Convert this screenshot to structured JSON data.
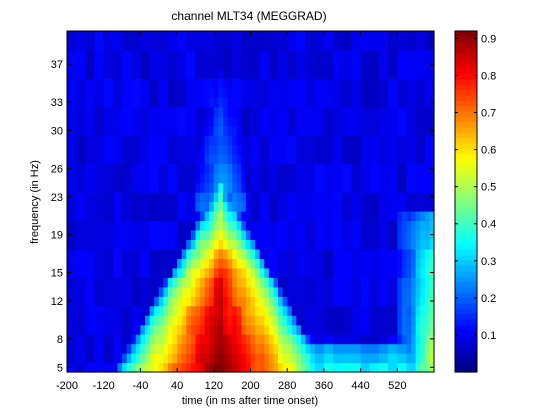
{
  "chart_data": {
    "type": "heatmap",
    "title": "channel MLT34 (MEGGRAD)",
    "xlabel": "time (in ms after time onset)",
    "ylabel": "frequency (in Hz)",
    "x_ticks": [
      "-200",
      "-120",
      "-40",
      "40",
      "120",
      "200",
      "280",
      "360",
      "440",
      "520"
    ],
    "x_tick_values": [
      -200,
      -120,
      -40,
      40,
      120,
      200,
      280,
      360,
      440,
      520
    ],
    "xlim": [
      -200,
      600
    ],
    "y_ticks": [
      "5",
      "8",
      "12",
      "15",
      "19",
      "23",
      "26",
      "30",
      "33",
      "37"
    ],
    "y_tick_values": [
      5,
      8,
      12,
      15,
      19,
      23,
      26,
      30,
      33,
      37
    ],
    "ylim": [
      4.5,
      40.5
    ],
    "colorbar_ticks": [
      "0.1",
      "0.2",
      "0.3",
      "0.4",
      "0.5",
      "0.6",
      "0.7",
      "0.8",
      "0.9"
    ],
    "colorbar_tick_values": [
      0.1,
      0.2,
      0.3,
      0.4,
      0.5,
      0.6,
      0.7,
      0.8,
      0.9
    ],
    "clim": [
      0.0,
      0.92
    ],
    "colormap": "jet",
    "x_step_ms": 10,
    "frequencies": [
      5,
      6,
      7,
      8,
      9,
      10,
      11,
      12,
      13,
      14,
      15,
      16,
      17,
      18,
      19,
      20,
      21,
      22,
      23,
      24,
      25,
      26,
      27,
      28,
      29,
      30,
      31,
      32,
      33,
      34,
      35,
      36,
      37,
      38,
      39,
      40
    ],
    "description_of_values": "power highest (~0.9) around 120 ms at 5-10 Hz, forming a triangular region narrowing with frequency up to ~23 Hz; secondary elevation near 560-600 ms at low frequencies; background ~0.05-0.15"
  }
}
